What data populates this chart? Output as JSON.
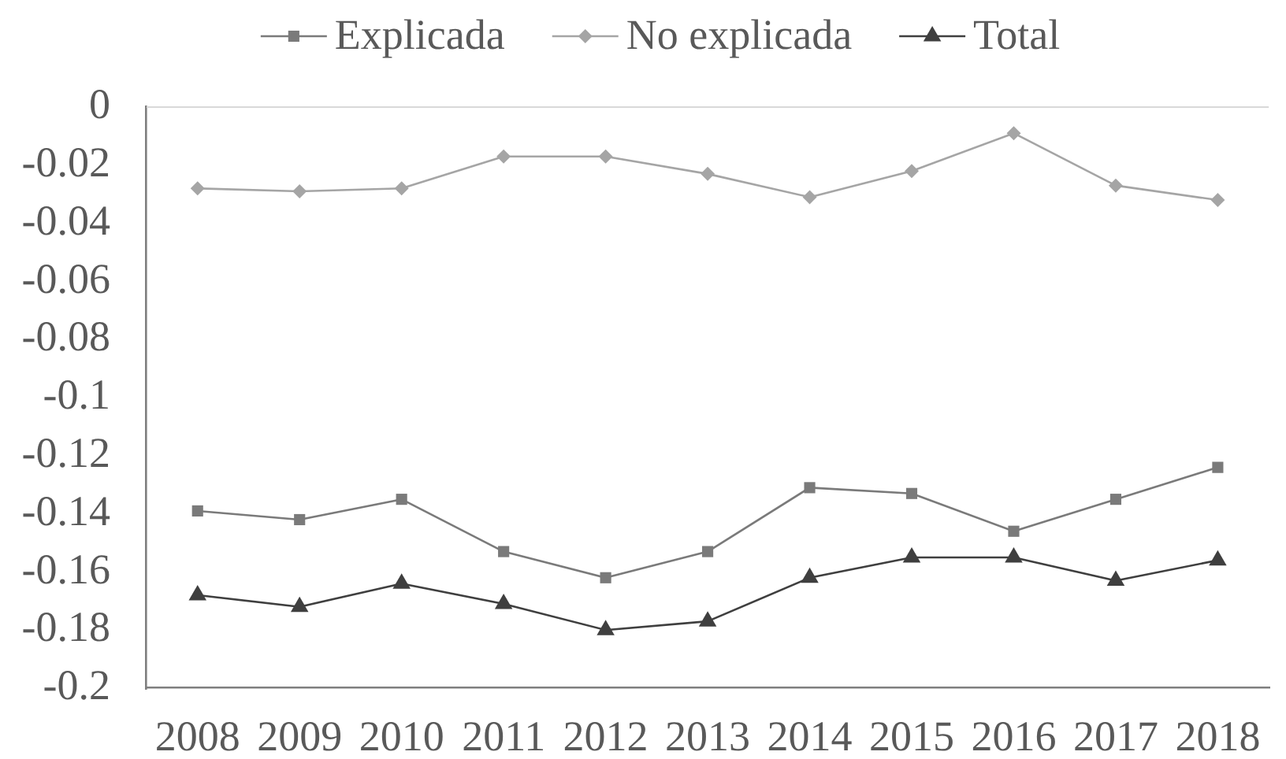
{
  "chart_data": {
    "type": "line",
    "categories": [
      "2008",
      "2009",
      "2010",
      "2011",
      "2012",
      "2013",
      "2014",
      "2015",
      "2016",
      "2017",
      "2018"
    ],
    "series": [
      {
        "name": "Explicada",
        "color": "#7a7a7a",
        "marker": "square",
        "values": [
          -0.139,
          -0.142,
          -0.135,
          -0.153,
          -0.162,
          -0.153,
          -0.131,
          -0.133,
          -0.146,
          -0.135,
          -0.124
        ]
      },
      {
        "name": "No explicada",
        "color": "#a5a5a5",
        "marker": "diamond",
        "values": [
          -0.028,
          -0.029,
          -0.028,
          -0.017,
          -0.017,
          -0.023,
          -0.031,
          -0.022,
          -0.009,
          -0.027,
          -0.032
        ]
      },
      {
        "name": "Total",
        "color": "#3f3f3f",
        "marker": "triangle",
        "values": [
          -0.168,
          -0.172,
          -0.164,
          -0.171,
          -0.18,
          -0.177,
          -0.162,
          -0.155,
          -0.155,
          -0.163,
          -0.156
        ]
      }
    ],
    "ylim": [
      -0.2,
      0
    ],
    "yticks": [
      0,
      -0.02,
      -0.04,
      -0.06,
      -0.08,
      -0.1,
      -0.12,
      -0.14,
      -0.16,
      -0.18,
      -0.2
    ],
    "ref_lines": [
      {
        "axis": "y",
        "value": 0,
        "color": "#d9d9d9"
      }
    ],
    "legend": "top",
    "line_style": "solid"
  }
}
